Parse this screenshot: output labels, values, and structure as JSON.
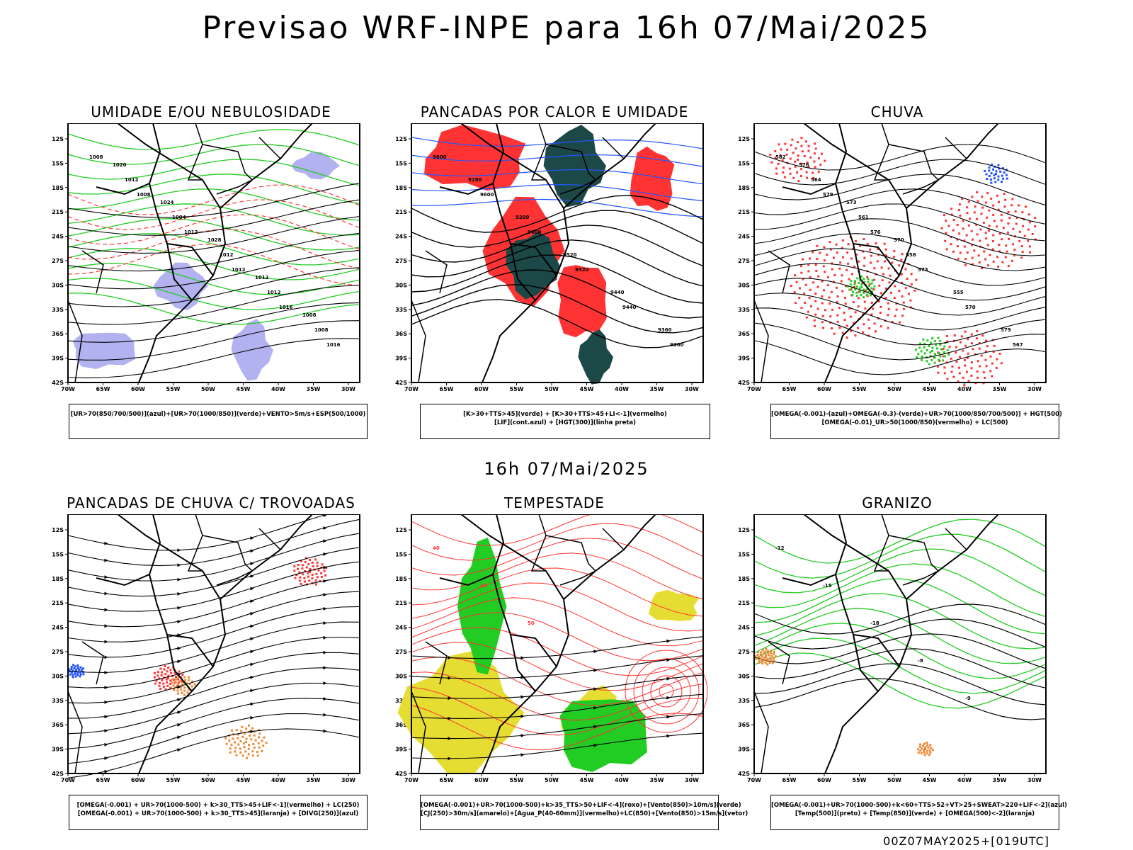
{
  "header": {
    "title": "Previsao WRF-INPE  para 16h 07/Mai/2025",
    "mid_title": "16h 07/Mai/2025",
    "footer": "00Z07MAY2025+[019UTC]"
  },
  "axes": {
    "lat_labels": [
      "12S",
      "15S",
      "18S",
      "21S",
      "24S",
      "27S",
      "30S",
      "33S",
      "36S",
      "39S",
      "42S"
    ],
    "lon_labels": [
      "70W",
      "65W",
      "60W",
      "55W",
      "50W",
      "45W",
      "40W",
      "35W",
      "30W"
    ]
  },
  "colors": {
    "green": "#22cc22",
    "red": "#ff3333",
    "blue": "#2255ff",
    "lavender": "#aaaaee",
    "darkteal": "#1c4848",
    "yellow": "#e6dd33",
    "orange": "#ee8833",
    "black": "#000000"
  },
  "panels": [
    {
      "id": "umidade",
      "title": "UMIDADE E/OU NEBULOSIDADE",
      "legend": [
        "[UR>70(850/700/500)](azul)+[UR>70(1000/850)](verde)+VENTO>5m/s+ESP(500/1000)"
      ],
      "contour_labels": [
        "1008",
        "1008",
        "1012",
        "1012",
        "1016",
        "1016",
        "1012",
        "1004",
        "1012",
        "1012",
        "1008",
        "1020",
        "1024",
        "1028",
        "1012",
        "1008"
      ]
    },
    {
      "id": "pancadas-calor",
      "title": "PANCADAS POR CALOR E UMIDADE",
      "legend": [
        "[K>30+TTS>45](verde)  +  [K>30+TTS>45+LI<-1](vermelho)",
        "[LIF](cont.azul)  +  [HGT(300)](linha preta)"
      ],
      "contour_labels": [
        "9600",
        "9600",
        "9600",
        "9520",
        "9440",
        "9360",
        "9280",
        "9200",
        "9520",
        "9440",
        "9360"
      ]
    },
    {
      "id": "chuva",
      "title": "CHUVA",
      "legend": [
        "[OMEGA(-0.001)-(azul)+OMEGA(-0.3)-(verde)+UR>70(1000/850/700/500)] + HGT(500)",
        "[OMEGA(-0.01)_UR>50(1000/850)(vermelho) + LC(500)"
      ],
      "contour_labels": [
        "582",
        "579",
        "576",
        "573",
        "570",
        "567",
        "564",
        "561",
        "558",
        "555",
        "579",
        "576",
        "573",
        "570"
      ]
    },
    {
      "id": "trovoadas",
      "title": "PANCADAS DE CHUVA C/ TROVOADAS",
      "legend": [
        "[OMEGA(-0.001) + UR>70(1000-500) + k>30_TTS>45+LIF<-1](vermelho) + LC(250)",
        "[OMEGA(-0.001) + UR>70(1000-500) + k>30_TTS>45](laranja) + [DIVG(250)](azul)"
      ],
      "contour_labels": []
    },
    {
      "id": "tempestade",
      "title": "TEMPESTADE",
      "legend": [
        "[OMEGA(-0.001)+UR>70(1000-500)+k>35_TTS>50+LIF<-4](roxo)+[Vento(850)>10m/s](verde)",
        "[CJ(250)>30m/s](amarelo)+[Agua_P(40-60mm)](vermelho)+LC(850)+[Vento(850)>15m/s](vetor)"
      ],
      "contour_labels": [
        "40",
        "40",
        "50"
      ]
    },
    {
      "id": "granizo",
      "title": "GRANIZO",
      "legend": [
        "[OMEGA(-0.001)+UR>70(1000-500)+k<60+TTS>52+VT>25+SWEAT>220+LIF<-2](azul)",
        "[Temp(500)](preto)  +  [Temp(850)](verde)  +  [OMEGA(500)<-2](laranja)"
      ],
      "contour_labels": [
        "-12",
        "-15",
        "-18",
        "-8",
        "-9"
      ]
    }
  ]
}
